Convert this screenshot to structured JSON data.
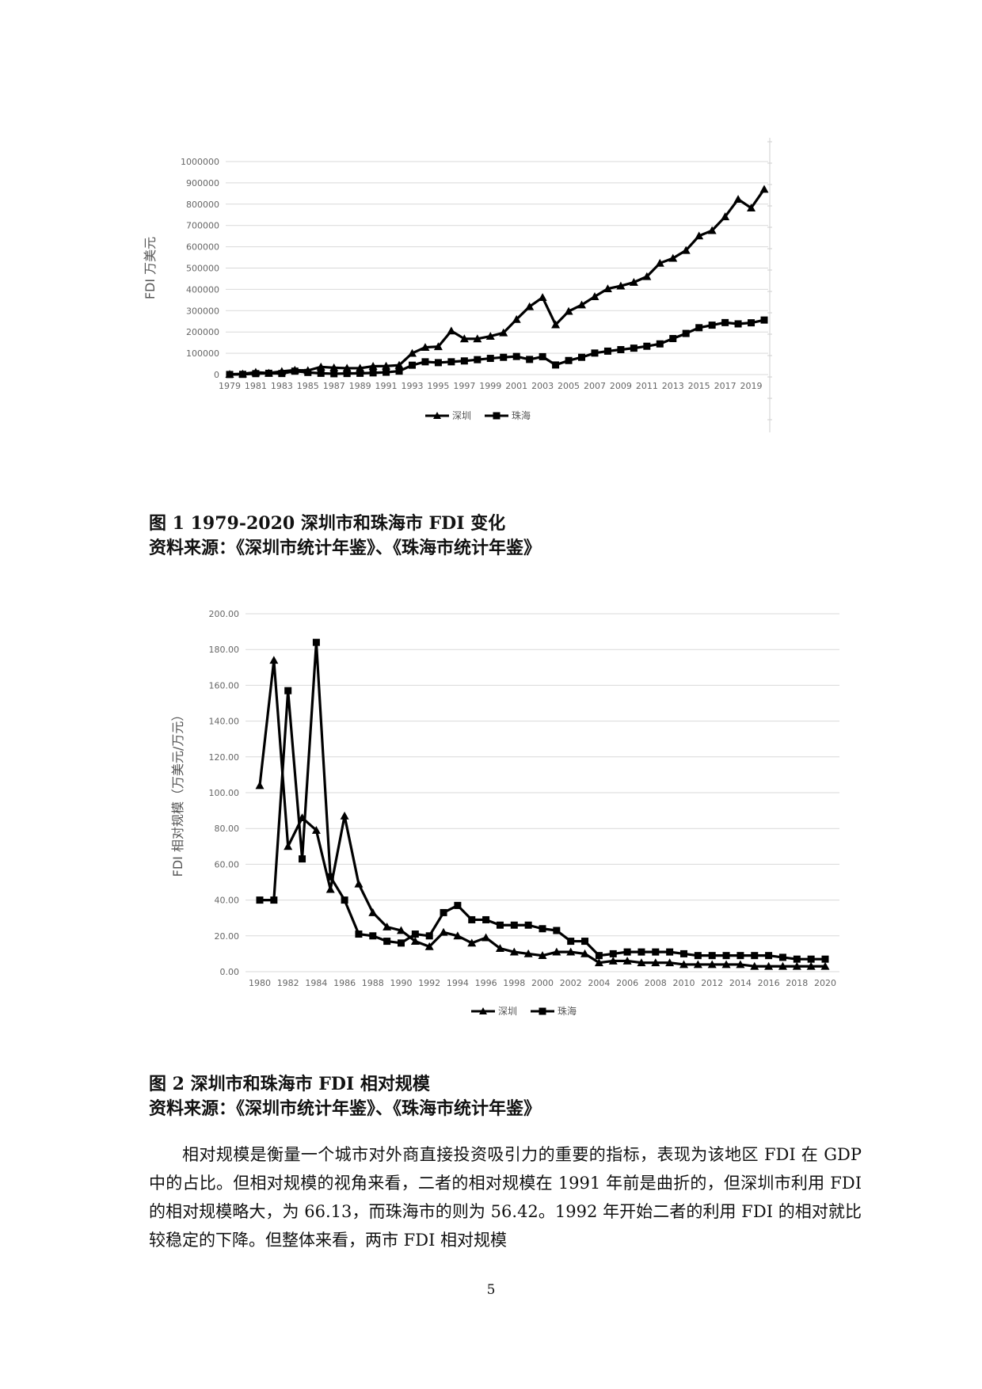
{
  "chart_data": [
    {
      "type": "line",
      "ylabel": "FDI 万美元",
      "ylim": [
        0,
        1000000
      ],
      "yticks": [
        "0",
        "100000",
        "200000",
        "300000",
        "400000",
        "500000",
        "600000",
        "700000",
        "800000",
        "900000",
        "1000000"
      ],
      "xtick_labels": [
        "1979",
        "1981",
        "1983",
        "1985",
        "1987",
        "1989",
        "1991",
        "1993",
        "1995",
        "1997",
        "1999",
        "2001",
        "2003",
        "2005",
        "2007",
        "2009",
        "2011",
        "2013",
        "2015",
        "2017",
        "2019"
      ],
      "x": [
        1979,
        1980,
        1981,
        1982,
        1983,
        1984,
        1985,
        1986,
        1987,
        1988,
        1989,
        1990,
        1991,
        1992,
        1993,
        1994,
        1995,
        1996,
        1997,
        1998,
        1999,
        2000,
        2001,
        2002,
        2003,
        2004,
        2005,
        2006,
        2007,
        2008,
        2009,
        2010,
        2011,
        2012,
        2013,
        2014,
        2015,
        2016,
        2017,
        2018,
        2019,
        2020
      ],
      "grid": true,
      "legend_position": "bottom",
      "series": [
        {
          "name": "深圳",
          "marker": "triangle",
          "values": [
            1500,
            3300,
            11000,
            7000,
            15000,
            21000,
            19000,
            36000,
            32000,
            30000,
            30000,
            39000,
            40000,
            44000,
            100000,
            128000,
            131000,
            205000,
            168000,
            168000,
            180000,
            196000,
            259000,
            319000,
            362000,
            234000,
            297000,
            327000,
            366000,
            403000,
            416000,
            433000,
            460000,
            523000,
            546000,
            583000,
            651000,
            676000,
            741000,
            823000,
            782000,
            870000
          ]
        },
        {
          "name": "珠海",
          "marker": "square",
          "values": [
            300,
            1000,
            4500,
            6000,
            5000,
            16000,
            10000,
            6000,
            4000,
            5000,
            6000,
            8000,
            11000,
            16000,
            44000,
            60000,
            56000,
            60000,
            64000,
            70000,
            76000,
            81000,
            85000,
            71000,
            84000,
            45000,
            66000,
            81000,
            101000,
            110000,
            117000,
            124000,
            133000,
            144000,
            169000,
            193000,
            220000,
            232000,
            244000,
            238000,
            243000,
            256000
          ]
        }
      ]
    },
    {
      "type": "line",
      "ylabel": "FDI 相对规模（万美元/万元）",
      "ylim": [
        0,
        200
      ],
      "yticks": [
        "0.00",
        "20.00",
        "40.00",
        "60.00",
        "80.00",
        "100.00",
        "120.00",
        "140.00",
        "160.00",
        "180.00",
        "200.00"
      ],
      "xtick_labels": [
        "1980",
        "1982",
        "1984",
        "1986",
        "1988",
        "1990",
        "1992",
        "1994",
        "1996",
        "1998",
        "2000",
        "2002",
        "2004",
        "2006",
        "2008",
        "2010",
        "2012",
        "2014",
        "2016",
        "2018",
        "2020"
      ],
      "x": [
        1980,
        1981,
        1982,
        1983,
        1984,
        1985,
        1986,
        1987,
        1988,
        1989,
        1990,
        1991,
        1992,
        1993,
        1994,
        1995,
        1996,
        1997,
        1998,
        1999,
        2000,
        2001,
        2002,
        2003,
        2004,
        2005,
        2006,
        2007,
        2008,
        2009,
        2010,
        2011,
        2012,
        2013,
        2014,
        2015,
        2016,
        2017,
        2018,
        2019,
        2020
      ],
      "grid": true,
      "legend_position": "bottom",
      "series": [
        {
          "name": "深圳",
          "marker": "triangle",
          "values": [
            104,
            174,
            70,
            86,
            79,
            46,
            87,
            49,
            33,
            25,
            23,
            17,
            14,
            22,
            20,
            16,
            19,
            13,
            11,
            10,
            9,
            11,
            11,
            10,
            5,
            6,
            6,
            5,
            5,
            5,
            4,
            4,
            4,
            4,
            4,
            3,
            3,
            3,
            3,
            3,
            3
          ]
        },
        {
          "name": "珠海",
          "marker": "square",
          "values": [
            40,
            40,
            157,
            63,
            184,
            53,
            40,
            21,
            20,
            17,
            16,
            21,
            20,
            33,
            37,
            29,
            29,
            26,
            26,
            26,
            24,
            23,
            17,
            17,
            9,
            10,
            11,
            11,
            11,
            11,
            10,
            9,
            9,
            9,
            9,
            9,
            9,
            8,
            7,
            7,
            7
          ]
        }
      ]
    }
  ],
  "captions": {
    "fig1_title": "图 1 1979-2020 深圳市和珠海市 FDI 变化",
    "fig1_source": "资料来源：《深圳市统计年鉴》、《珠海市统计年鉴》",
    "fig2_title": "图 2 深圳市和珠海市 FDI 相对规模",
    "fig2_source": "资料来源：《深圳市统计年鉴》、《珠海市统计年鉴》"
  },
  "body_text": "相对规模是衡量一个城市对外商直接投资吸引力的重要的指标，表现为该地区 FDI 在 GDP 中的占比。但相对规模的视角来看，二者的相对规模在 1991 年前是曲折的，但深圳市利用 FDI 的相对规模略大，为 66.13，而珠海市的则为 56.42。1992 年开始二者的利用 FDI 的相对就比较稳定的下降。但整体来看，两市 FDI 相对规模",
  "page_number": "5",
  "colors": {
    "line": "#000000",
    "grid": "#d9d9d9",
    "tick_text": "#666666"
  }
}
